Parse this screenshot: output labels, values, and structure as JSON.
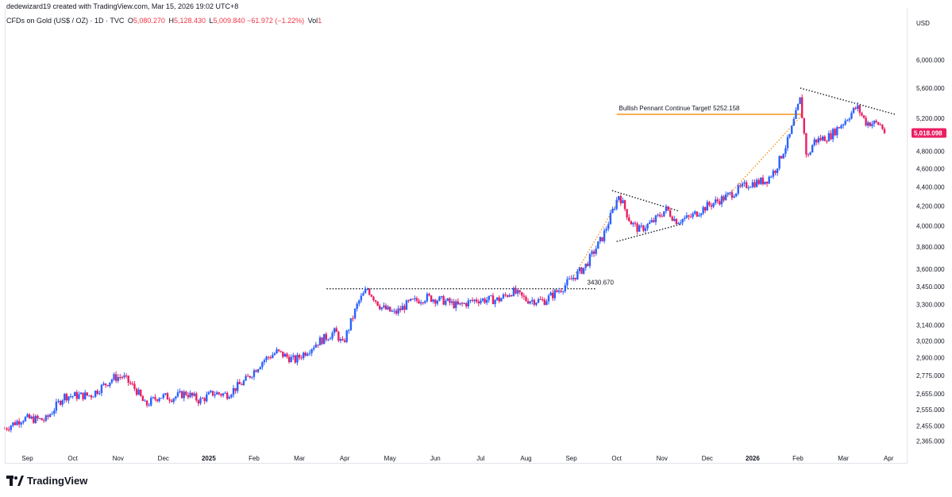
{
  "header": {
    "text": "dedewizard19 created with TradingView.com, Mar 15, 2026 19:02 UTC+8"
  },
  "legend": {
    "symbol": "CFDs on Gold (US$ / OZ) · 1D · TVC",
    "open_label": "O",
    "open_value": "5,080.270",
    "high_label": "H",
    "high_value": "5,128.430",
    "low_label": "L",
    "low_value": "5,009.840",
    "change_value": "−61.972 (−1.22%)",
    "vol_label": "Vol",
    "vol_value": "1"
  },
  "logo": {
    "text": "TradingView"
  },
  "colors": {
    "up": "#2962ff",
    "down": "#e91e63",
    "orange": "#f7931a",
    "price_tag": "#e91e63"
  },
  "chart_data": {
    "type": "candlestick",
    "title": "CFDs on Gold (US$ / OZ) · 1D · TVC",
    "currency_label": "USD",
    "y_scale": "log",
    "ylim": [
      2300,
      6450
    ],
    "y_ticks": [
      6000,
      5600,
      5200,
      4800,
      4600,
      4400,
      4200,
      4000,
      3800,
      3600,
      3450,
      3300,
      3140,
      3020,
      2900,
      2775,
      2655,
      2555,
      2455,
      2365
    ],
    "y_tick_labels": [
      "6,000.000",
      "5,600.000",
      "5,200.000",
      "4,800.000",
      "4,600.000",
      "4,400.000",
      "4,200.000",
      "4,000.000",
      "3,800.000",
      "3,600.000",
      "3,450.000",
      "3,300.000",
      "3,140.000",
      "3,020.000",
      "2,900.000",
      "2,775.000",
      "2,655.000",
      "2,555.000",
      "2,455.000",
      "2,365.000"
    ],
    "x_range_months": [
      0,
      19.9
    ],
    "x_ticks": [
      {
        "m": 0.5,
        "label": "Sep",
        "bold": false
      },
      {
        "m": 1.5,
        "label": "Oct",
        "bold": false
      },
      {
        "m": 2.5,
        "label": "Nov",
        "bold": false
      },
      {
        "m": 3.5,
        "label": "Dec",
        "bold": false
      },
      {
        "m": 4.5,
        "label": "2025",
        "bold": true
      },
      {
        "m": 5.5,
        "label": "Feb",
        "bold": false
      },
      {
        "m": 6.5,
        "label": "Mar",
        "bold": false
      },
      {
        "m": 7.5,
        "label": "Apr",
        "bold": false
      },
      {
        "m": 8.5,
        "label": "May",
        "bold": false
      },
      {
        "m": 9.5,
        "label": "Jun",
        "bold": false
      },
      {
        "m": 10.5,
        "label": "Jul",
        "bold": false
      },
      {
        "m": 11.5,
        "label": "Aug",
        "bold": false
      },
      {
        "m": 12.5,
        "label": "Sep",
        "bold": false
      },
      {
        "m": 13.5,
        "label": "Oct",
        "bold": false
      },
      {
        "m": 14.5,
        "label": "Nov",
        "bold": false
      },
      {
        "m": 15.5,
        "label": "Dec",
        "bold": false
      },
      {
        "m": 16.5,
        "label": "2026",
        "bold": true
      },
      {
        "m": 17.5,
        "label": "Feb",
        "bold": false
      },
      {
        "m": 18.5,
        "label": "Mar",
        "bold": false
      },
      {
        "m": 19.5,
        "label": "Apr",
        "bold": false
      }
    ],
    "price_path": [
      [
        0.0,
        2440
      ],
      [
        0.4,
        2500
      ],
      [
        0.9,
        2490
      ],
      [
        1.3,
        2640
      ],
      [
        1.9,
        2645
      ],
      [
        2.4,
        2760
      ],
      [
        2.6,
        2770
      ],
      [
        2.9,
        2680
      ],
      [
        3.1,
        2580
      ],
      [
        3.4,
        2640
      ],
      [
        3.7,
        2630
      ],
      [
        4.0,
        2660
      ],
      [
        4.3,
        2610
      ],
      [
        4.6,
        2660
      ],
      [
        4.9,
        2650
      ],
      [
        5.3,
        2740
      ],
      [
        5.7,
        2880
      ],
      [
        6.0,
        2940
      ],
      [
        6.4,
        2880
      ],
      [
        6.9,
        3010
      ],
      [
        7.3,
        3090
      ],
      [
        7.45,
        2990
      ],
      [
        7.8,
        3320
      ],
      [
        8.0,
        3430
      ],
      [
        8.3,
        3280
      ],
      [
        8.6,
        3230
      ],
      [
        8.9,
        3310
      ],
      [
        9.3,
        3360
      ],
      [
        9.7,
        3330
      ],
      [
        10.0,
        3290
      ],
      [
        10.4,
        3340
      ],
      [
        10.9,
        3340
      ],
      [
        11.2,
        3410
      ],
      [
        11.5,
        3340
      ],
      [
        11.9,
        3330
      ],
      [
        12.3,
        3440
      ],
      [
        12.8,
        3620
      ],
      [
        13.2,
        3900
      ],
      [
        13.55,
        4320
      ],
      [
        13.8,
        4040
      ],
      [
        14.0,
        3960
      ],
      [
        14.3,
        4040
      ],
      [
        14.6,
        4170
      ],
      [
        14.8,
        4050
      ],
      [
        15.1,
        4080
      ],
      [
        15.5,
        4200
      ],
      [
        15.9,
        4290
      ],
      [
        16.4,
        4430
      ],
      [
        16.8,
        4470
      ],
      [
        17.0,
        4590
      ],
      [
        17.3,
        4950
      ],
      [
        17.55,
        5450
      ],
      [
        17.7,
        4700
      ],
      [
        17.85,
        4920
      ],
      [
        18.2,
        4980
      ],
      [
        18.5,
        5150
      ],
      [
        18.8,
        5350
      ],
      [
        19.0,
        5150
      ],
      [
        19.3,
        5130
      ],
      [
        19.45,
        5018
      ]
    ],
    "lines": [
      {
        "name": "resistance-3430",
        "style": "dotted",
        "color": "#131722",
        "points": [
          [
            7.1,
            3430.67
          ],
          [
            13.05,
            3430.67
          ]
        ]
      },
      {
        "name": "pennant-upper-1",
        "style": "dotted",
        "color": "#131722",
        "points": [
          [
            13.4,
            4360
          ],
          [
            14.85,
            4150
          ]
        ]
      },
      {
        "name": "pennant-lower-1",
        "style": "dotted",
        "color": "#131722",
        "points": [
          [
            13.5,
            3850
          ],
          [
            14.95,
            4020
          ]
        ]
      },
      {
        "name": "pennant-upper-2",
        "style": "dotted",
        "color": "#131722",
        "points": [
          [
            17.55,
            5600
          ],
          [
            19.65,
            5250
          ]
        ]
      },
      {
        "name": "flagpole-1",
        "style": "dotted",
        "color": "#f7931a",
        "points": [
          [
            12.5,
            3500
          ],
          [
            13.6,
            4300
          ]
        ]
      },
      {
        "name": "flagpole-2",
        "style": "dotted",
        "color": "#f7931a",
        "points": [
          [
            15.85,
            4250
          ],
          [
            17.6,
            5250
          ]
        ]
      },
      {
        "name": "target-line",
        "style": "solid",
        "color": "#f7931a",
        "points": [
          [
            13.5,
            5252.158
          ],
          [
            17.6,
            5252.158
          ]
        ]
      }
    ],
    "annotations": [
      {
        "text": "Bullish Pennant Continue Target! 5252.158",
        "m": 13.55,
        "price": 5252.158
      },
      {
        "text": "3430.670",
        "m": 12.85,
        "price": 3430.67
      }
    ],
    "last_price": 5018.098,
    "last_price_label": "5,018.098"
  }
}
